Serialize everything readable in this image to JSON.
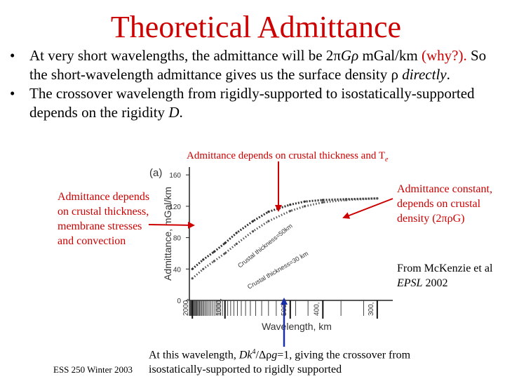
{
  "slide": {
    "title": "Theoretical Admittance",
    "bullet1": {
      "text_a": "At very short wavelengths, the admittance will be 2",
      "pi": "π",
      "G": "G",
      "rho": "ρ",
      "text_b": " mGal/km ",
      "why": "(why?).",
      "text_c": " So the short-wavelength admittance gives us the surface density ρ ",
      "directly": "directly",
      "period": "."
    },
    "bullet2": {
      "text_a": "The crossover wavelength from rigidly-supported to isostatically-supported depends on the rigidity ",
      "D": "D",
      "period": "."
    },
    "annotation_top": {
      "text": "Admittance depends on crustal thickness and T",
      "sub": "e"
    },
    "annotation_left": "Admittance depends on crustal thickness, membrane stresses and convection",
    "annotation_right": "Admittance constant, depends on crustal density (2πρG)",
    "citation": {
      "line1": "From McKenzie et al",
      "journal": "EPSL",
      "year": " 2002"
    },
    "annotation_bottom": {
      "line1_a": "At this wavelength, ",
      "Dk": "Dk",
      "sup": "4",
      "slash": "/Δρ",
      "g": "g",
      "line1_b": "=1, giving the crossover from",
      "line2": "isostatically-supported to rigidly supported"
    },
    "footer": "ESS 250 Winter 2003"
  },
  "chart_data": {
    "type": "line",
    "panel_label": "(a)",
    "ylabel": "Admittance, mGal/km",
    "xlabel": "Wavelength, km",
    "ylim": [
      0,
      170
    ],
    "yticks": [
      0,
      40,
      80,
      120,
      160
    ],
    "x_log_reciprocal": true,
    "xticks": [
      2000,
      1000,
      500,
      400,
      300
    ],
    "series": [
      {
        "name": "Crustal thickness=50km",
        "x": [
          2000,
          1500,
          1200,
          1000,
          850,
          700,
          600,
          500,
          450,
          400,
          350,
          300
        ],
        "y": [
          40,
          52,
          62,
          73,
          86,
          101,
          113,
          122,
          126,
          128,
          129,
          130
        ]
      },
      {
        "name": "Crustal thickness=30 km",
        "x": [
          2000,
          1500,
          1200,
          1000,
          850,
          700,
          600,
          500,
          450,
          400,
          350,
          300
        ],
        "y": [
          28,
          40,
          50,
          60,
          72,
          88,
          101,
          114,
          120,
          125,
          128,
          130
        ]
      }
    ]
  }
}
